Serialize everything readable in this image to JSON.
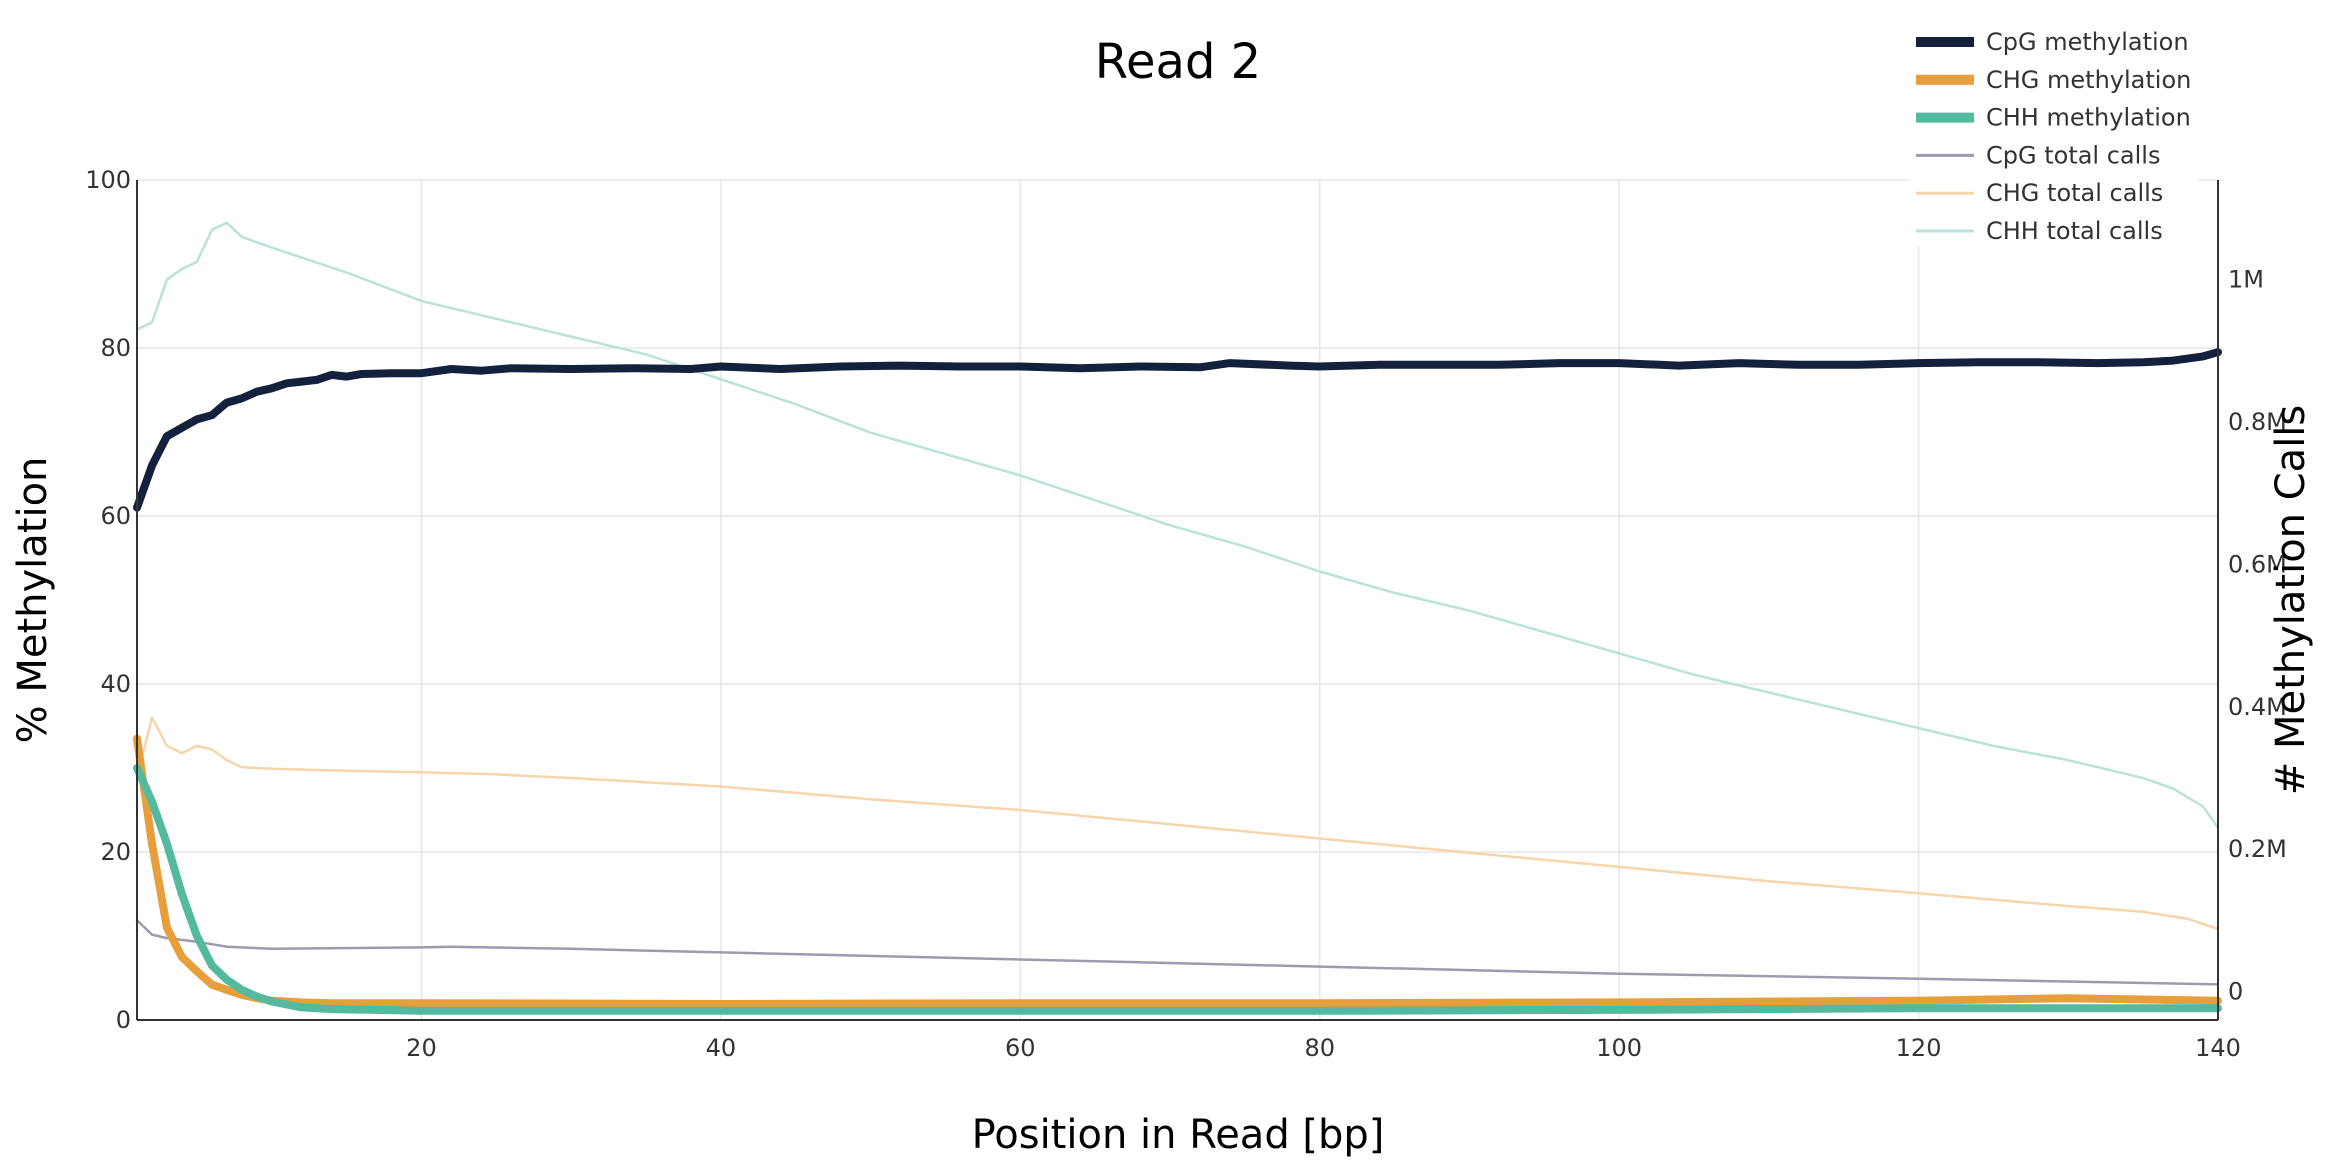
{
  "chart_data": {
    "type": "line",
    "title": "Read 2",
    "xlabel": "Position in Read [bp]",
    "ylabel": "% Methylation",
    "y2label": "# Methylation Calls",
    "xlim": [
      1,
      140
    ],
    "ylim": [
      0,
      100
    ],
    "y2lim": [
      -40000,
      1140000
    ],
    "x_ticks": [
      20,
      40,
      60,
      80,
      100,
      120,
      140
    ],
    "y_ticks": [
      0,
      20,
      40,
      60,
      80,
      100
    ],
    "y2_ticks": [
      0,
      200000,
      400000,
      600000,
      800000,
      1000000
    ],
    "y2_tick_labels": [
      "0",
      "0.2M",
      "0.4M",
      "0.6M",
      "0.8M",
      "1M"
    ],
    "grid": true,
    "legend_position": "top-right",
    "colors": {
      "CpG methylation": "#14213d",
      "CHG methylation": "#e69f3b",
      "CHH methylation": "#55b99f",
      "CpG total calls": "#9c9cae",
      "CHG total calls": "#f7d5ab",
      "CHH total calls": "#b9e2d8"
    },
    "series": [
      {
        "name": "CpG methylation",
        "axis": "y",
        "width": 8,
        "points": [
          [
            1,
            61
          ],
          [
            2,
            66
          ],
          [
            3,
            69.5
          ],
          [
            4,
            70.5
          ],
          [
            5,
            71.5
          ],
          [
            6,
            72
          ],
          [
            7,
            73.5
          ],
          [
            8,
            74
          ],
          [
            9,
            74.8
          ],
          [
            10,
            75.2
          ],
          [
            11,
            75.8
          ],
          [
            12,
            76
          ],
          [
            13,
            76.2
          ],
          [
            14,
            76.8
          ],
          [
            15,
            76.6
          ],
          [
            16,
            76.9
          ],
          [
            18,
            77
          ],
          [
            20,
            77
          ],
          [
            22,
            77.5
          ],
          [
            24,
            77.3
          ],
          [
            26,
            77.6
          ],
          [
            30,
            77.5
          ],
          [
            34,
            77.6
          ],
          [
            38,
            77.5
          ],
          [
            40,
            77.8
          ],
          [
            44,
            77.5
          ],
          [
            48,
            77.8
          ],
          [
            52,
            77.9
          ],
          [
            56,
            77.8
          ],
          [
            60,
            77.8
          ],
          [
            64,
            77.6
          ],
          [
            68,
            77.8
          ],
          [
            72,
            77.7
          ],
          [
            74,
            78.2
          ],
          [
            78,
            77.9
          ],
          [
            80,
            77.8
          ],
          [
            84,
            78
          ],
          [
            88,
            78
          ],
          [
            92,
            78
          ],
          [
            96,
            78.2
          ],
          [
            100,
            78.2
          ],
          [
            104,
            77.9
          ],
          [
            108,
            78.2
          ],
          [
            112,
            78
          ],
          [
            116,
            78
          ],
          [
            120,
            78.2
          ],
          [
            124,
            78.3
          ],
          [
            128,
            78.3
          ],
          [
            132,
            78.2
          ],
          [
            135,
            78.3
          ],
          [
            137,
            78.5
          ],
          [
            139,
            79
          ],
          [
            140,
            79.5
          ]
        ]
      },
      {
        "name": "CHG methylation",
        "axis": "y",
        "width": 8,
        "points": [
          [
            1,
            33.5
          ],
          [
            2,
            21
          ],
          [
            3,
            11
          ],
          [
            4,
            7.5
          ],
          [
            5,
            5.8
          ],
          [
            6,
            4.2
          ],
          [
            7,
            3.6
          ],
          [
            8,
            3
          ],
          [
            9,
            2.6
          ],
          [
            10,
            2.3
          ],
          [
            12,
            2.1
          ],
          [
            14,
            2
          ],
          [
            20,
            2
          ],
          [
            40,
            1.9
          ],
          [
            60,
            2
          ],
          [
            80,
            2
          ],
          [
            100,
            2.1
          ],
          [
            120,
            2.3
          ],
          [
            130,
            2.6
          ],
          [
            140,
            2.3
          ]
        ]
      },
      {
        "name": "CHH methylation",
        "axis": "y",
        "width": 8,
        "points": [
          [
            1,
            30
          ],
          [
            2,
            26
          ],
          [
            3,
            21
          ],
          [
            4,
            15
          ],
          [
            5,
            10
          ],
          [
            6,
            6.5
          ],
          [
            7,
            4.8
          ],
          [
            8,
            3.6
          ],
          [
            9,
            2.8
          ],
          [
            10,
            2.2
          ],
          [
            12,
            1.5
          ],
          [
            14,
            1.3
          ],
          [
            20,
            1.1
          ],
          [
            40,
            1.1
          ],
          [
            60,
            1.1
          ],
          [
            80,
            1.1
          ],
          [
            100,
            1.2
          ],
          [
            120,
            1.4
          ],
          [
            140,
            1.4
          ]
        ]
      },
      {
        "name": "CpG total calls",
        "axis": "y2",
        "width": 2.5,
        "points": [
          [
            1,
            100000
          ],
          [
            2,
            80000
          ],
          [
            3,
            75000
          ],
          [
            5,
            70000
          ],
          [
            7,
            63000
          ],
          [
            10,
            60000
          ],
          [
            20,
            62000
          ],
          [
            22,
            63000
          ],
          [
            30,
            60000
          ],
          [
            40,
            55000
          ],
          [
            60,
            45000
          ],
          [
            80,
            35000
          ],
          [
            100,
            25000
          ],
          [
            120,
            18000
          ],
          [
            140,
            10000
          ]
        ]
      },
      {
        "name": "CHG total calls",
        "axis": "y2",
        "width": 2.5,
        "points": [
          [
            1,
            300000
          ],
          [
            2,
            385000
          ],
          [
            3,
            345000
          ],
          [
            4,
            335000
          ],
          [
            5,
            345000
          ],
          [
            6,
            340000
          ],
          [
            7,
            325000
          ],
          [
            8,
            315000
          ],
          [
            10,
            313000
          ],
          [
            15,
            310000
          ],
          [
            20,
            308000
          ],
          [
            25,
            305000
          ],
          [
            30,
            300000
          ],
          [
            40,
            288000
          ],
          [
            50,
            270000
          ],
          [
            60,
            255000
          ],
          [
            70,
            235000
          ],
          [
            80,
            215000
          ],
          [
            90,
            195000
          ],
          [
            100,
            175000
          ],
          [
            110,
            155000
          ],
          [
            120,
            138000
          ],
          [
            130,
            120000
          ],
          [
            135,
            112000
          ],
          [
            138,
            102000
          ],
          [
            140,
            88000
          ]
        ]
      },
      {
        "name": "CHH total calls",
        "axis": "y2",
        "width": 2.5,
        "points": [
          [
            1,
            930000
          ],
          [
            2,
            940000
          ],
          [
            3,
            1000000
          ],
          [
            4,
            1015000
          ],
          [
            5,
            1025000
          ],
          [
            6,
            1070000
          ],
          [
            7,
            1080000
          ],
          [
            8,
            1060000
          ],
          [
            10,
            1045000
          ],
          [
            15,
            1010000
          ],
          [
            20,
            970000
          ],
          [
            25,
            945000
          ],
          [
            30,
            920000
          ],
          [
            35,
            895000
          ],
          [
            40,
            860000
          ],
          [
            45,
            825000
          ],
          [
            50,
            785000
          ],
          [
            55,
            755000
          ],
          [
            60,
            725000
          ],
          [
            65,
            690000
          ],
          [
            70,
            655000
          ],
          [
            75,
            625000
          ],
          [
            80,
            590000
          ],
          [
            85,
            560000
          ],
          [
            90,
            535000
          ],
          [
            95,
            505000
          ],
          [
            100,
            475000
          ],
          [
            105,
            445000
          ],
          [
            110,
            420000
          ],
          [
            115,
            395000
          ],
          [
            120,
            370000
          ],
          [
            125,
            345000
          ],
          [
            130,
            325000
          ],
          [
            135,
            300000
          ],
          [
            137,
            285000
          ],
          [
            139,
            260000
          ],
          [
            140,
            230000
          ]
        ]
      }
    ]
  }
}
